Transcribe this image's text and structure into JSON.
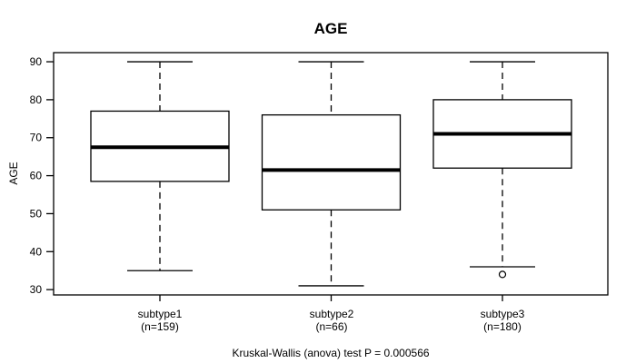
{
  "chart_data": {
    "type": "boxplot",
    "title": "AGE",
    "ylabel": "AGE",
    "xlabel": "",
    "caption": "Kruskal-Wallis (anova) test P = 0.000566",
    "ylim": [
      28.6,
      92.4
    ],
    "yticks": [
      30,
      40,
      50,
      60,
      70,
      80,
      90
    ],
    "grid": false,
    "categories": [
      "subtype1",
      "subtype2",
      "subtype3"
    ],
    "category_sublabels": [
      "(n=159)",
      "(n=66)",
      "(n=180)"
    ],
    "series": [
      {
        "name": "subtype1",
        "n": 159,
        "whisker_low": 35,
        "q1": 58.5,
        "median": 67.5,
        "q3": 77,
        "whisker_high": 90,
        "outliers": []
      },
      {
        "name": "subtype2",
        "n": 66,
        "whisker_low": 31,
        "q1": 51,
        "median": 61.5,
        "q3": 76,
        "whisker_high": 90,
        "outliers": []
      },
      {
        "name": "subtype3",
        "n": 180,
        "whisker_low": 36,
        "q1": 62,
        "median": 71,
        "q3": 80,
        "whisker_high": 90,
        "outliers": [
          34
        ]
      }
    ],
    "colors": {
      "line": "#000000",
      "median": "#000000",
      "box_fill": "#ffffff",
      "background": "#ffffff"
    }
  }
}
